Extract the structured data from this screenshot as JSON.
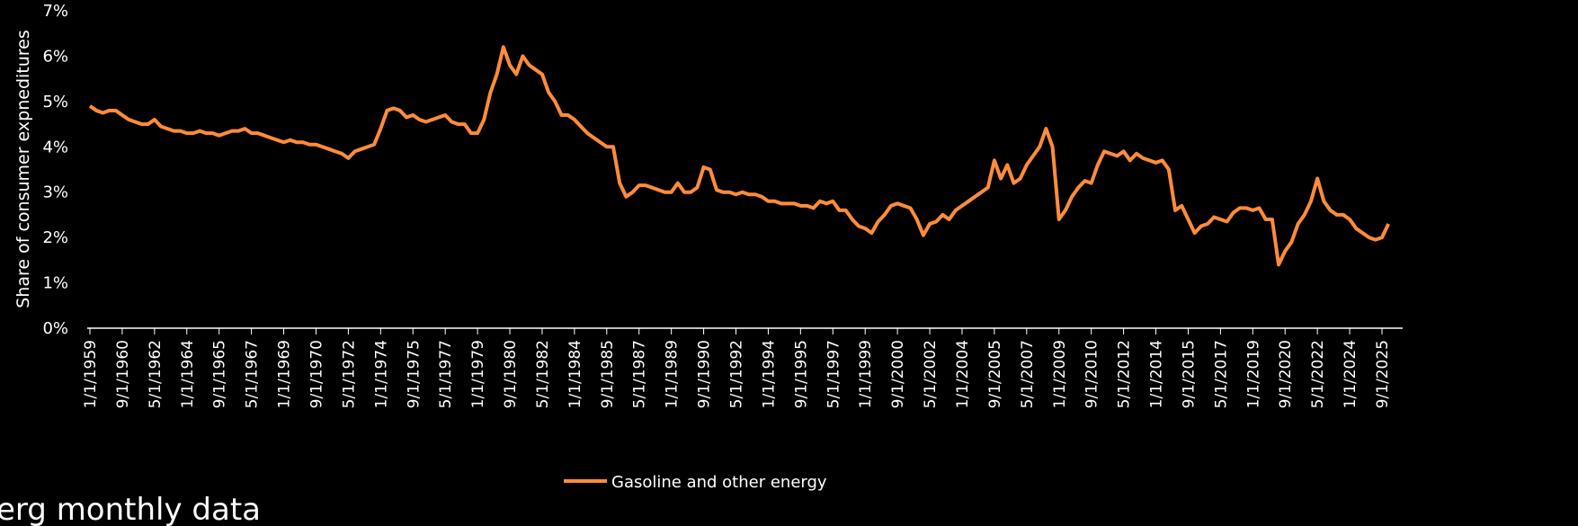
{
  "chart_data": {
    "type": "line",
    "y_axis_label": "Share of consumer expneditures",
    "source": "erg monthly data",
    "ylim": [
      0,
      7
    ],
    "yticks": [
      {
        "value": 0,
        "label": "0%"
      },
      {
        "value": 1,
        "label": "1%"
      },
      {
        "value": 2,
        "label": "2%"
      },
      {
        "value": 3,
        "label": "3%"
      },
      {
        "value": 4,
        "label": "4%"
      },
      {
        "value": 5,
        "label": "5%"
      },
      {
        "value": 6,
        "label": "6%"
      },
      {
        "value": 7,
        "label": "7%"
      }
    ],
    "categories": [
      "1/1/1959",
      null,
      null,
      null,
      null,
      "9/1/1960",
      null,
      null,
      null,
      null,
      "5/1/1962",
      null,
      null,
      null,
      null,
      "1/1/1964",
      null,
      null,
      null,
      null,
      "9/1/1965",
      null,
      null,
      null,
      null,
      "5/1/1967",
      null,
      null,
      null,
      null,
      "1/1/1969",
      null,
      null,
      null,
      null,
      "9/1/1970",
      null,
      null,
      null,
      null,
      "5/1/1972",
      null,
      null,
      null,
      null,
      "1/1/1974",
      null,
      null,
      null,
      null,
      "9/1/1975",
      null,
      null,
      null,
      null,
      "5/1/1977",
      null,
      null,
      null,
      null,
      "1/1/1979",
      null,
      null,
      null,
      null,
      "9/1/1980",
      null,
      null,
      null,
      null,
      "5/1/1982",
      null,
      null,
      null,
      null,
      "1/1/1984",
      null,
      null,
      null,
      null,
      "9/1/1985",
      null,
      null,
      null,
      null,
      "5/1/1987",
      null,
      null,
      null,
      null,
      "1/1/1989",
      null,
      null,
      null,
      null,
      "9/1/1990",
      null,
      null,
      null,
      null,
      "5/1/1992",
      null,
      null,
      null,
      null,
      "1/1/1994",
      null,
      null,
      null,
      null,
      "9/1/1995",
      null,
      null,
      null,
      null,
      "5/1/1997",
      null,
      null,
      null,
      null,
      "1/1/1999",
      null,
      null,
      null,
      null,
      "9/1/2000",
      null,
      null,
      null,
      null,
      "5/1/2002",
      null,
      null,
      null,
      null,
      "1/1/2004",
      null,
      null,
      null,
      null,
      "9/1/2005",
      null,
      null,
      null,
      null,
      "5/1/2007",
      null,
      null,
      null,
      null,
      "1/1/2009",
      null,
      null,
      null,
      null,
      "9/1/2010",
      null,
      null,
      null,
      null,
      "5/1/2012",
      null,
      null,
      null,
      null,
      "1/1/2014",
      null,
      null,
      null,
      null,
      "9/1/2015",
      null,
      null,
      null,
      null,
      "5/1/2017",
      null,
      null,
      null,
      null,
      "1/1/2019",
      null,
      null,
      null,
      null,
      "9/1/2020",
      null,
      null,
      null,
      null,
      "5/1/2022",
      null,
      null,
      null,
      null,
      "1/1/2024",
      null,
      null,
      null,
      null,
      "9/1/2025",
      null
    ],
    "series": [
      {
        "name": "Gasoline and other energy",
        "color": "#ff8c3a",
        "values": [
          4.9,
          4.8,
          4.75,
          4.8,
          4.8,
          4.7,
          4.6,
          4.55,
          4.5,
          4.5,
          4.6,
          4.45,
          4.4,
          4.35,
          4.35,
          4.3,
          4.3,
          4.35,
          4.3,
          4.3,
          4.25,
          4.3,
          4.35,
          4.35,
          4.4,
          4.3,
          4.3,
          4.25,
          4.2,
          4.15,
          4.1,
          4.15,
          4.1,
          4.1,
          4.05,
          4.05,
          4.0,
          3.95,
          3.9,
          3.85,
          3.75,
          3.9,
          3.95,
          4.0,
          4.05,
          4.4,
          4.8,
          4.85,
          4.8,
          4.65,
          4.7,
          4.6,
          4.55,
          4.6,
          4.65,
          4.7,
          4.55,
          4.5,
          4.5,
          4.3,
          4.3,
          4.6,
          5.2,
          5.6,
          6.2,
          5.8,
          5.6,
          6.0,
          5.8,
          5.7,
          5.6,
          5.2,
          5.0,
          4.7,
          4.7,
          4.6,
          4.45,
          4.3,
          4.2,
          4.1,
          4.0,
          4.0,
          3.2,
          2.9,
          3.0,
          3.15,
          3.15,
          3.1,
          3.05,
          3.0,
          3.0,
          3.2,
          3.0,
          3.0,
          3.1,
          3.55,
          3.5,
          3.05,
          3.0,
          3.0,
          2.95,
          3.0,
          2.95,
          2.95,
          2.9,
          2.8,
          2.8,
          2.75,
          2.75,
          2.75,
          2.7,
          2.7,
          2.65,
          2.8,
          2.75,
          2.8,
          2.6,
          2.6,
          2.4,
          2.25,
          2.2,
          2.1,
          2.35,
          2.5,
          2.7,
          2.75,
          2.7,
          2.65,
          2.4,
          2.05,
          2.3,
          2.35,
          2.5,
          2.4,
          2.6,
          2.7,
          2.8,
          2.9,
          3.0,
          3.1,
          3.7,
          3.3,
          3.6,
          3.2,
          3.3,
          3.6,
          3.8,
          4.0,
          4.4,
          4.0,
          2.4,
          2.6,
          2.9,
          3.1,
          3.25,
          3.2,
          3.6,
          3.9,
          3.85,
          3.8,
          3.9,
          3.7,
          3.85,
          3.75,
          3.7,
          3.65,
          3.7,
          3.5,
          2.6,
          2.7,
          2.4,
          2.1,
          2.25,
          2.3,
          2.45,
          2.4,
          2.35,
          2.55,
          2.65,
          2.65,
          2.6,
          2.65,
          2.4,
          2.4,
          1.4,
          1.7,
          1.9,
          2.3,
          2.5,
          2.8,
          3.3,
          2.8,
          2.6,
          2.5,
          2.5,
          2.4,
          2.2,
          2.1,
          2.0,
          1.95,
          2.0,
          2.3
        ]
      }
    ]
  }
}
